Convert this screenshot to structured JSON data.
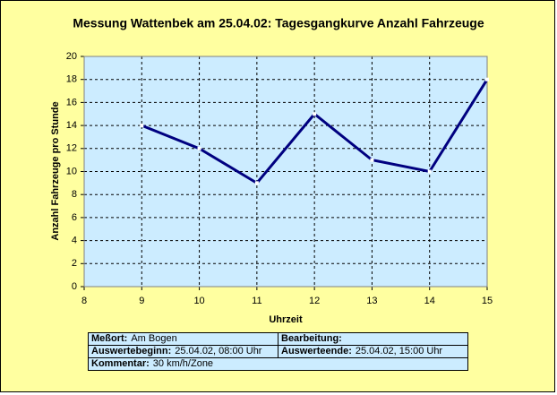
{
  "chart_data": {
    "type": "line",
    "title": "Messung Wattenbek am 25.04.02: Tagesgangkurve Anzahl Fahrzeuge",
    "x_label": "Uhrzeit",
    "y_label": "Anzahl Fahrzeuge pro Stunde",
    "x": [
      9,
      10,
      11,
      12,
      13,
      14,
      15
    ],
    "values": [
      14,
      12,
      9,
      15,
      11,
      10,
      18
    ],
    "color": "#000080",
    "xlim": [
      8,
      15
    ],
    "xticks": [
      8,
      9,
      10,
      11,
      12,
      13,
      14,
      15
    ],
    "ylim": [
      0,
      20
    ],
    "yticks": [
      0,
      2,
      4,
      6,
      8,
      10,
      12,
      14,
      16,
      18,
      20
    ],
    "grid": true
  },
  "info": [
    [
      {
        "label": "Meßort:",
        "value": "Am Bogen"
      },
      {
        "label": "Bearbeitung:"
      }
    ],
    [
      {
        "label": "Auswertebeginn:",
        "value": "25.04.02, 08:00 Uhr"
      },
      {
        "label": "Auswerteende:",
        "value": "25.04.02, 15:00 Uhr"
      }
    ],
    [
      {
        "label": "Kommentar:",
        "value": "30 km/h/Zone"
      }
    ]
  ]
}
